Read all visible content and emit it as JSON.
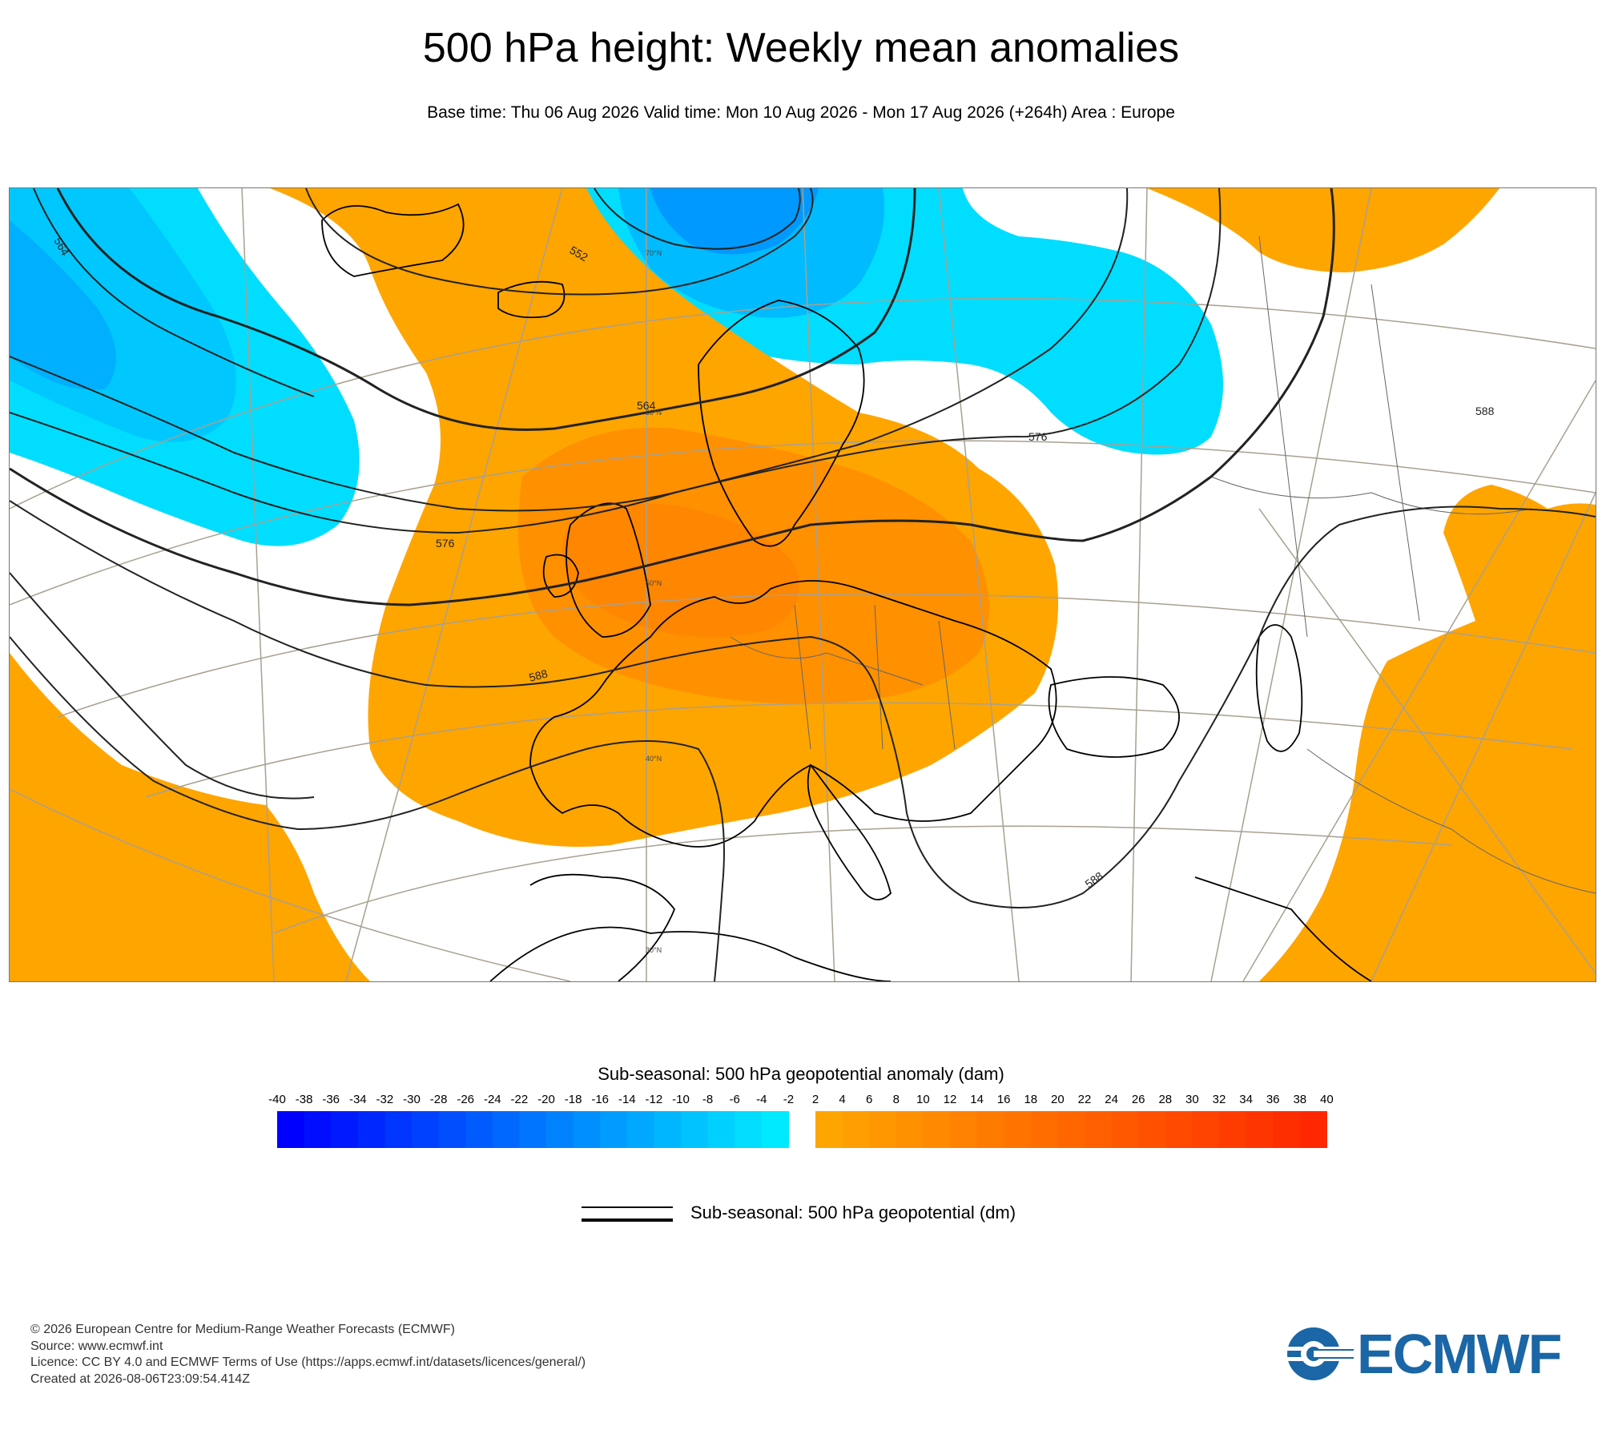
{
  "title": "500 hPa height: Weekly mean anomalies",
  "subtitle": "Base time: Thu 06 Aug 2026 Valid time: Mon 10 Aug 2026 - Mon 17 Aug 2026 (+264h) Area : Europe",
  "map": {
    "area": "Europe",
    "contour_labels": [
      "564",
      "552",
      "564",
      "576",
      "576",
      "588",
      "588",
      "588"
    ],
    "latitude_labels": [
      "70°N",
      "60°N",
      "50°N",
      "40°N",
      "30°N"
    ],
    "colors": {
      "negative_light": "#00ddff",
      "negative_mid": "#00bbff",
      "negative_dark": "#0099ff",
      "positive_light": "#ffa500",
      "positive_mid": "#ff8c00",
      "coastline": "#000000",
      "graticule": "#a8a090",
      "contour": "#222222"
    }
  },
  "colorbar": {
    "title": "Sub-seasonal: 500 hPa geopotential anomaly (dam)",
    "ticks": [
      "-40",
      "-38",
      "-36",
      "-34",
      "-32",
      "-30",
      "-28",
      "-26",
      "-24",
      "-22",
      "-20",
      "-18",
      "-16",
      "-14",
      "-12",
      "-10",
      "-8",
      "-6",
      "-4",
      "-2",
      "2",
      "4",
      "6",
      "8",
      "10",
      "12",
      "14",
      "16",
      "18",
      "20",
      "22",
      "24",
      "26",
      "28",
      "30",
      "32",
      "34",
      "36",
      "38",
      "40"
    ],
    "negative_colors": [
      "#0000ff",
      "#000dff",
      "#001aff",
      "#0027ff",
      "#0034ff",
      "#0041ff",
      "#004eff",
      "#005bff",
      "#0068ff",
      "#0075ff",
      "#0082ff",
      "#008fff",
      "#009cff",
      "#00a9ff",
      "#00b6ff",
      "#00c3ff",
      "#00d0ff",
      "#00ddff",
      "#00eaff"
    ],
    "positive_colors": [
      "#ffa500",
      "#ff9e00",
      "#ff9700",
      "#ff9000",
      "#ff8900",
      "#ff8200",
      "#ff7b00",
      "#ff7400",
      "#ff6d00",
      "#ff6600",
      "#ff5f00",
      "#ff5800",
      "#ff5100",
      "#ff4a00",
      "#ff4300",
      "#ff3c00",
      "#ff3500",
      "#ff2e00",
      "#ff2700"
    ]
  },
  "line_legend": {
    "label": "Sub-seasonal: 500 hPa geopotential (dm)"
  },
  "footer": {
    "copyright": "© 2026 European Centre for Medium-Range Weather Forecasts (ECMWF)",
    "source": "Source: www.ecmwf.int",
    "licence": "Licence: CC BY 4.0 and ECMWF Terms of Use (https://apps.ecmwf.int/datasets/licences/general/)",
    "created": "Created at 2026-08-06T23:09:54.414Z"
  },
  "logo": {
    "text": "ECMWF",
    "icon": "ecmwf-logo-icon",
    "color": "#1a66a6"
  }
}
